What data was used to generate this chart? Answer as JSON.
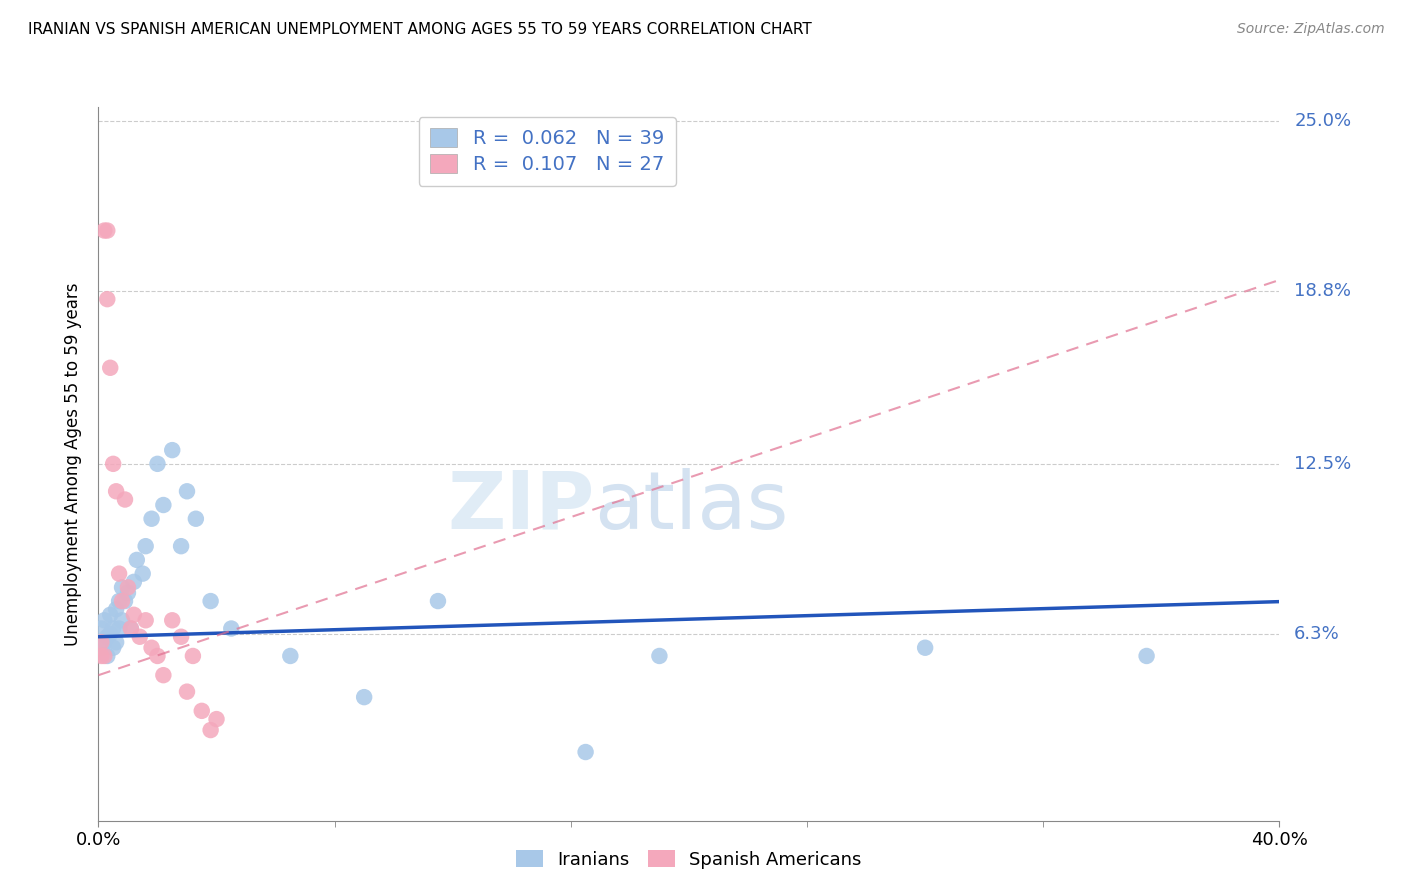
{
  "title": "IRANIAN VS SPANISH AMERICAN UNEMPLOYMENT AMONG AGES 55 TO 59 YEARS CORRELATION CHART",
  "source": "Source: ZipAtlas.com",
  "ylabel": "Unemployment Among Ages 55 to 59 years",
  "xlim": [
    0.0,
    0.4
  ],
  "ylim": [
    -0.005,
    0.255
  ],
  "ytick_vals": [
    0.063,
    0.125,
    0.188,
    0.25
  ],
  "ytick_labels": [
    "6.3%",
    "12.5%",
    "18.8%",
    "25.0%"
  ],
  "xtick_vals": [
    0.0,
    0.4
  ],
  "xtick_labels": [
    "0.0%",
    "40.0%"
  ],
  "iranian_color": "#a8c8e8",
  "spanish_color": "#f4a8bc",
  "iranian_line_color": "#2255bb",
  "spanish_line_color": "#e07090",
  "legend_text_color": "#4472c4",
  "watermark1": "ZIP",
  "watermark2": "atlas",
  "iranian_R": "0.062",
  "iranian_N": "39",
  "spanish_R": "0.107",
  "spanish_N": "27",
  "iranians_x": [
    0.001,
    0.001,
    0.002,
    0.002,
    0.003,
    0.003,
    0.004,
    0.004,
    0.005,
    0.005,
    0.006,
    0.006,
    0.007,
    0.007,
    0.008,
    0.008,
    0.009,
    0.01,
    0.011,
    0.012,
    0.013,
    0.015,
    0.016,
    0.018,
    0.02,
    0.022,
    0.025,
    0.028,
    0.03,
    0.033,
    0.038,
    0.045,
    0.065,
    0.09,
    0.115,
    0.165,
    0.19,
    0.28,
    0.355
  ],
  "iranians_y": [
    0.058,
    0.065,
    0.06,
    0.068,
    0.055,
    0.062,
    0.063,
    0.07,
    0.058,
    0.065,
    0.06,
    0.072,
    0.065,
    0.075,
    0.068,
    0.08,
    0.075,
    0.078,
    0.065,
    0.082,
    0.09,
    0.085,
    0.095,
    0.105,
    0.125,
    0.11,
    0.13,
    0.095,
    0.115,
    0.105,
    0.075,
    0.065,
    0.055,
    0.04,
    0.075,
    0.02,
    0.055,
    0.058,
    0.055
  ],
  "spanish_x": [
    0.001,
    0.001,
    0.002,
    0.002,
    0.003,
    0.003,
    0.004,
    0.005,
    0.006,
    0.007,
    0.008,
    0.009,
    0.01,
    0.011,
    0.012,
    0.014,
    0.016,
    0.018,
    0.02,
    0.022,
    0.025,
    0.028,
    0.03,
    0.032,
    0.035,
    0.038,
    0.04
  ],
  "spanish_y": [
    0.055,
    0.06,
    0.055,
    0.21,
    0.21,
    0.185,
    0.16,
    0.125,
    0.115,
    0.085,
    0.075,
    0.112,
    0.08,
    0.065,
    0.07,
    0.062,
    0.068,
    0.058,
    0.055,
    0.048,
    0.068,
    0.062,
    0.042,
    0.055,
    0.035,
    0.028,
    0.032
  ]
}
